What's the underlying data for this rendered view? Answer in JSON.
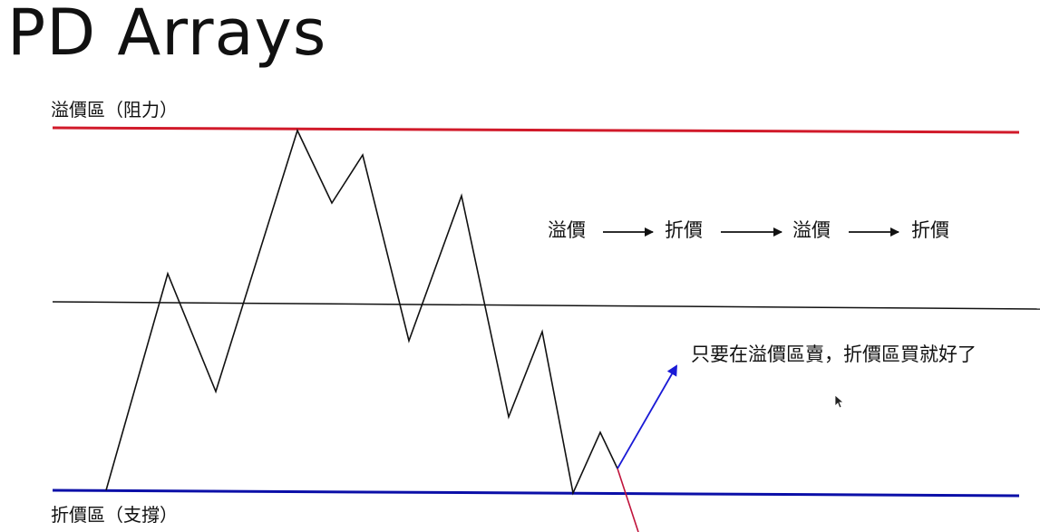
{
  "title": "PD Arrays",
  "zones": {
    "premium_label": "溢價區（阻力）",
    "discount_label": "折價區（支撐）",
    "premium_color": "#d11a2a",
    "discount_color": "#0b0fa8",
    "equilibrium_color": "#111111"
  },
  "flow": {
    "steps": [
      "溢價",
      "折價",
      "溢價",
      "折價"
    ],
    "arrow_icon": "right-arrow-icon"
  },
  "note": {
    "text": "只要在溢價區賣，折價區買就好了",
    "arrow_color": "#1a1ad6",
    "cut_line_color": "#c0143c"
  },
  "cursor_icon": "mouse-pointer-icon"
}
